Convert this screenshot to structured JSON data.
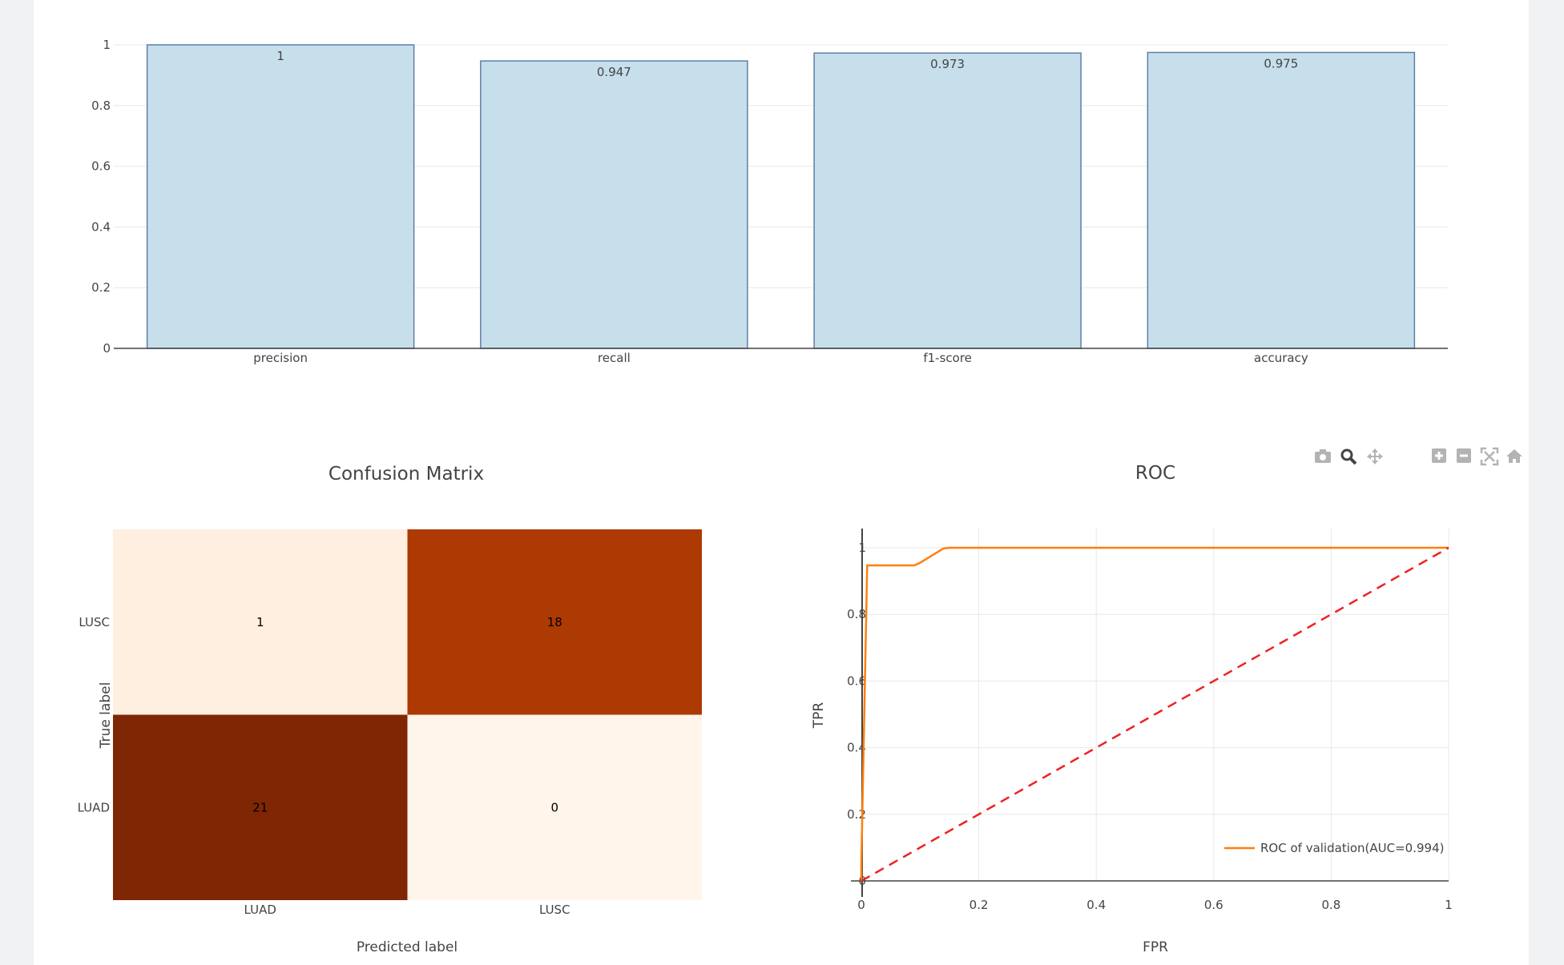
{
  "colors": {
    "bar_fill": "#c6dfeb",
    "bar_stroke": "#5f7fa8",
    "roc_line": "#ff7f0e",
    "diag_line": "#ee2222",
    "grid": "#e8e8e8",
    "toolbar_icon": "#b3b3b3",
    "toolbar_active": "#2a3f5f"
  },
  "toolbar": {
    "icons": [
      "camera-icon",
      "zoom-icon",
      "pan-icon",
      "zoom-in-icon",
      "zoom-out-icon",
      "autoscale-icon",
      "reset-axes-icon",
      "plotly-logo-icon"
    ]
  },
  "chart_data": [
    {
      "type": "bar",
      "categories": [
        "precision",
        "recall",
        "f1-score",
        "accuracy"
      ],
      "values": [
        1,
        0.947,
        0.973,
        0.975
      ],
      "value_labels": [
        "1",
        "0.947",
        "0.973",
        "0.975"
      ],
      "ylim": [
        0,
        1
      ],
      "yticks": [
        "0",
        "0.2",
        "0.4",
        "0.6",
        "0.8",
        "1"
      ],
      "grid": true
    },
    {
      "type": "heatmap",
      "title": "Confusion Matrix",
      "xlabel": "Predicted label",
      "ylabel": "True label",
      "x": [
        "LUAD",
        "LUSC"
      ],
      "y": [
        "LUAD",
        "LUSC"
      ],
      "z": [
        [
          21,
          0
        ],
        [
          1,
          18
        ]
      ],
      "colorscale": "Oranges"
    },
    {
      "type": "line",
      "title": "ROC",
      "xlabel": "FPR",
      "ylabel": "TPR",
      "xlim": [
        0,
        1
      ],
      "ylim": [
        0,
        1
      ],
      "xticks": [
        "0",
        "0.2",
        "0.4",
        "0.6",
        "0.8",
        "1"
      ],
      "yticks": [
        "0",
        "0.2",
        "0.4",
        "0.6",
        "0.8",
        "1"
      ],
      "series": [
        {
          "name": "ROC of validation(AUC=0.994)",
          "x": [
            0,
            0,
            0.01,
            0.09,
            0.1,
            0.14,
            0.15,
            1
          ],
          "y": [
            0,
            0.05,
            0.947,
            0.947,
            0.955,
            0.998,
            1,
            1
          ],
          "style": "solid"
        },
        {
          "x": [
            0,
            1
          ],
          "y": [
            0,
            1
          ],
          "style": "dash"
        }
      ],
      "legend_position": "bottom-right",
      "grid": true
    }
  ]
}
